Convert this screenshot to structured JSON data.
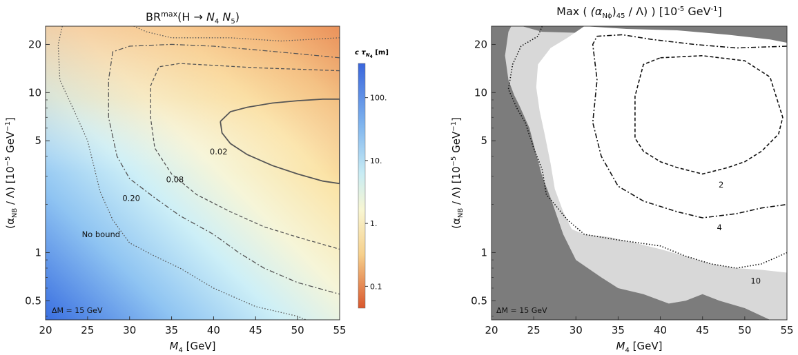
{
  "left": {
    "title_parts": {
      "main": "BR",
      "sup": "max",
      "paren": "(H → ",
      "n4": "N",
      "n4sub": "4",
      "n5": "N",
      "n5sub": "5",
      "close": ")"
    },
    "note": "ΔM = 15 GeV",
    "colorbar": {
      "title_parts": {
        "c": "c τ",
        "sub": "N",
        "subsub": "4",
        "unit": " [m]"
      },
      "ticks": [
        "100.",
        "10.",
        "1.",
        "0.1"
      ],
      "tick_values": [
        100,
        10,
        1,
        0.1
      ],
      "range": [
        0.045,
        350
      ],
      "colors": {
        "high": "#3a6fe0",
        "mid": "#fbf8d0",
        "low": "#dd6a34"
      }
    }
  },
  "right": {
    "title_parts": {
      "pre": "Max",
      "alpha": "(α",
      "sub": "Nϕ",
      "post": ")",
      "idx": "45",
      "div": " / Λ)",
      "unit_pre": "[10",
      "unit_sup": "-5",
      "unit_post": " GeV",
      "unit_sup2": "-1",
      "unit_close": "]"
    },
    "note": "ΔM = 15 GeV",
    "colors": {
      "dark": "#7c7c7c",
      "light": "#d8d8d8",
      "white": "#ffffff"
    }
  },
  "axes": {
    "xlabel_main": "M",
    "xlabel_sub": "4",
    "xlabel_unit": " [GeV]",
    "ylabel_parts": {
      "open": "(α",
      "sub": "NB",
      "mid": " / Λ) [10",
      "sup": "−5",
      "gev": " GeV",
      "sup2": "−1",
      "close": "]"
    },
    "x_ticks": [
      "20",
      "25",
      "30",
      "35",
      "40",
      "45",
      "50",
      "55"
    ],
    "y_ticks": [
      "0.5",
      "1",
      "5",
      "10",
      "20"
    ]
  },
  "chart_data": [
    {
      "type": "heatmap",
      "panel": "left",
      "x": [
        20,
        55
      ],
      "y_scale": "log",
      "xlim": [
        20,
        55
      ],
      "ylim": [
        0.38,
        26
      ],
      "contours": [
        {
          "label": "0.02",
          "style": "solid",
          "points": [
            [
              40.8,
              6.6
            ],
            [
              42,
              7.6
            ],
            [
              44,
              8.1
            ],
            [
              47,
              8.6
            ],
            [
              50,
              8.9
            ],
            [
              53,
              9.1
            ],
            [
              55,
              9.1
            ],
            [
              55,
              2.7
            ],
            [
              53,
              2.8
            ],
            [
              50,
              3.1
            ],
            [
              47,
              3.5
            ],
            [
              44,
              4.1
            ],
            [
              42,
              4.8
            ],
            [
              41,
              5.6
            ],
            [
              40.8,
              6.6
            ]
          ]
        },
        {
          "label": "0.08",
          "style": "dashed",
          "points": [
            [
              55,
              13.7
            ],
            [
              50,
              14.0
            ],
            [
              45,
              14.3
            ],
            [
              40,
              14.8
            ],
            [
              36,
              15.2
            ],
            [
              33.5,
              14.5
            ],
            [
              32.5,
              11.0
            ],
            [
              32.5,
              7.0
            ],
            [
              33,
              4.5
            ],
            [
              35,
              3.1
            ],
            [
              38,
              2.3
            ],
            [
              42,
              1.8
            ],
            [
              46,
              1.45
            ],
            [
              50,
              1.25
            ],
            [
              55,
              1.05
            ]
          ]
        },
        {
          "label": "0.20",
          "style": "dashdot",
          "points": [
            [
              55,
              16.5
            ],
            [
              50,
              17.5
            ],
            [
              45,
              18.5
            ],
            [
              40,
              19.5
            ],
            [
              35,
              20.0
            ],
            [
              30,
              19.5
            ],
            [
              28,
              18.0
            ],
            [
              27.5,
              12.0
            ],
            [
              27.5,
              7.0
            ],
            [
              28.5,
              4.0
            ],
            [
              30,
              2.9
            ],
            [
              33,
              2.2
            ],
            [
              36,
              1.7
            ],
            [
              40,
              1.3
            ],
            [
              43,
              1.0
            ],
            [
              46,
              0.8
            ],
            [
              50,
              0.65
            ],
            [
              55,
              0.55
            ]
          ]
        },
        {
          "label": "No bound",
          "style": "dotted",
          "points": [
            [
              55,
              22
            ],
            [
              48,
              21
            ],
            [
              42,
              22
            ],
            [
              35,
              22
            ],
            [
              32,
              24
            ],
            [
              30.5,
              26
            ]
          ]
        },
        {
          "label": "No bound",
          "style": "dotted",
          "points": [
            [
              22,
              26
            ],
            [
              21.5,
              20
            ],
            [
              21.7,
              12
            ],
            [
              23.5,
              7.5
            ],
            [
              25,
              5.0
            ],
            [
              26.5,
              2.4
            ],
            [
              28,
              1.6
            ],
            [
              30,
              1.15
            ],
            [
              33,
              0.95
            ],
            [
              36,
              0.8
            ],
            [
              40,
              0.6
            ],
            [
              45,
              0.46
            ],
            [
              50,
              0.4
            ],
            [
              51,
              0.38
            ]
          ]
        }
      ]
    },
    {
      "type": "heatmap",
      "panel": "right",
      "xlim": [
        20,
        55
      ],
      "y_scale": "log",
      "ylim": [
        0.38,
        26
      ],
      "contours": [
        {
          "label": "2",
          "style": "dashed",
          "points": [
            [
              40,
              16.5
            ],
            [
              45,
              17.0
            ],
            [
              50,
              15.8
            ],
            [
              53,
              12.5
            ],
            [
              54.5,
              7.0
            ],
            [
              54,
              5.5
            ],
            [
              52,
              4.3
            ],
            [
              50,
              3.7
            ],
            [
              48,
              3.4
            ],
            [
              45,
              3.1
            ],
            [
              42,
              3.4
            ],
            [
              40,
              3.7
            ],
            [
              38,
              4.3
            ],
            [
              37,
              5.2
            ],
            [
              37,
              9.5
            ],
            [
              38,
              15.0
            ],
            [
              40,
              16.5
            ]
          ]
        },
        {
          "label": "4",
          "style": "dashdot",
          "points": [
            [
              55,
              19.5
            ],
            [
              49,
              19.0
            ],
            [
              44,
              20.0
            ],
            [
              39,
              21.5
            ],
            [
              35.5,
              23.0
            ],
            [
              32.5,
              22.5
            ],
            [
              32,
              20
            ],
            [
              32.5,
              12
            ],
            [
              32,
              6.5
            ],
            [
              33,
              4.0
            ],
            [
              35,
              2.6
            ],
            [
              38,
              2.1
            ],
            [
              42,
              1.8
            ],
            [
              45,
              1.65
            ],
            [
              49,
              1.75
            ],
            [
              52,
              1.9
            ],
            [
              55,
              2.0
            ]
          ]
        },
        {
          "label": "10",
          "style": "dotted",
          "points": [
            [
              26,
              26
            ],
            [
              25.5,
              22.5
            ],
            [
              23.5,
              19.5
            ],
            [
              22.5,
              15
            ],
            [
              22,
              10.5
            ],
            [
              23,
              8
            ],
            [
              24,
              6.5
            ],
            [
              25,
              4.5
            ],
            [
              26,
              3.3
            ],
            [
              26.5,
              2.3
            ],
            [
              27.5,
              2.0
            ],
            [
              29,
              1.6
            ],
            [
              31,
              1.3
            ],
            [
              35,
              1.2
            ],
            [
              40,
              1.1
            ],
            [
              43,
              0.95
            ],
            [
              46,
              0.85
            ],
            [
              49,
              0.8
            ],
            [
              52,
              0.85
            ],
            [
              55,
              1.0
            ]
          ]
        }
      ]
    }
  ]
}
